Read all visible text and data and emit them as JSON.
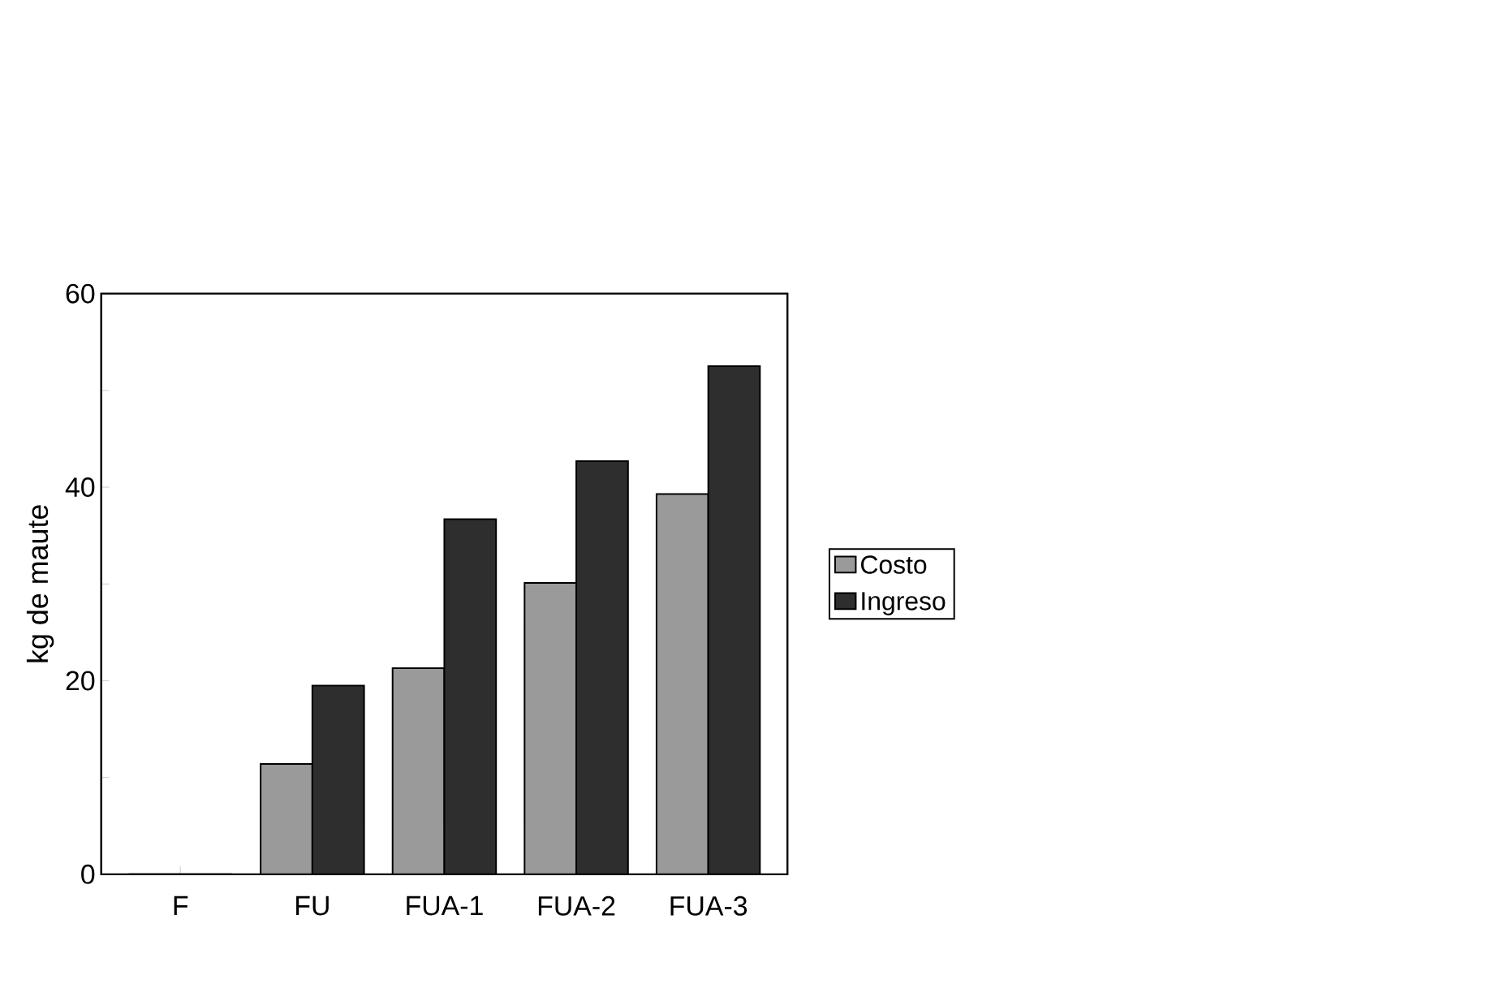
{
  "chart_data": {
    "type": "bar",
    "ylabel": "kg de maute",
    "categories": [
      "F",
      "FU",
      "FUA-1",
      "FUA-2",
      "FUA-3"
    ],
    "series": [
      {
        "name": "Costo",
        "color": "#9a9a9a",
        "values": [
          0,
          11.4,
          21.3,
          30.1,
          39.3
        ]
      },
      {
        "name": "Ingreso",
        "color": "#2e2e2e",
        "values": [
          0,
          19.5,
          36.7,
          42.7,
          52.5
        ]
      }
    ],
    "ylim": [
      0,
      60
    ],
    "yticks": [
      0,
      {
        "value": 10,
        "label": null
      },
      20,
      {
        "value": 30,
        "label": null
      },
      40,
      {
        "value": 50,
        "label": null
      },
      60
    ],
    "grid": false,
    "legend": "right"
  }
}
